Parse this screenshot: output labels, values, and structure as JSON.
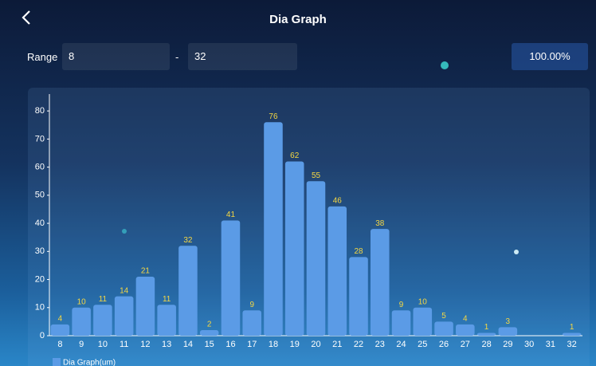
{
  "header": {
    "title": "Dia Graph"
  },
  "range": {
    "label": "Range",
    "min": "8",
    "separator": "-",
    "max": "32",
    "percent": "100.00%"
  },
  "chart_data": {
    "type": "bar",
    "categories": [
      "8",
      "9",
      "10",
      "11",
      "12",
      "13",
      "14",
      "15",
      "16",
      "17",
      "18",
      "19",
      "20",
      "21",
      "22",
      "23",
      "24",
      "25",
      "26",
      "27",
      "28",
      "29",
      "30",
      "31",
      "32"
    ],
    "series": [
      {
        "name": "Dia Graph(um)",
        "color": "#5b9be6",
        "values": [
          4,
          10,
          11,
          14,
          21,
          11,
          32,
          2,
          41,
          9,
          76,
          62,
          55,
          46,
          28,
          38,
          9,
          10,
          5,
          4,
          1,
          3,
          0,
          0,
          1
        ]
      }
    ],
    "ylim": [
      0,
      86
    ],
    "yticks": [
      0,
      10,
      20,
      30,
      40,
      50,
      60,
      70,
      80
    ]
  }
}
